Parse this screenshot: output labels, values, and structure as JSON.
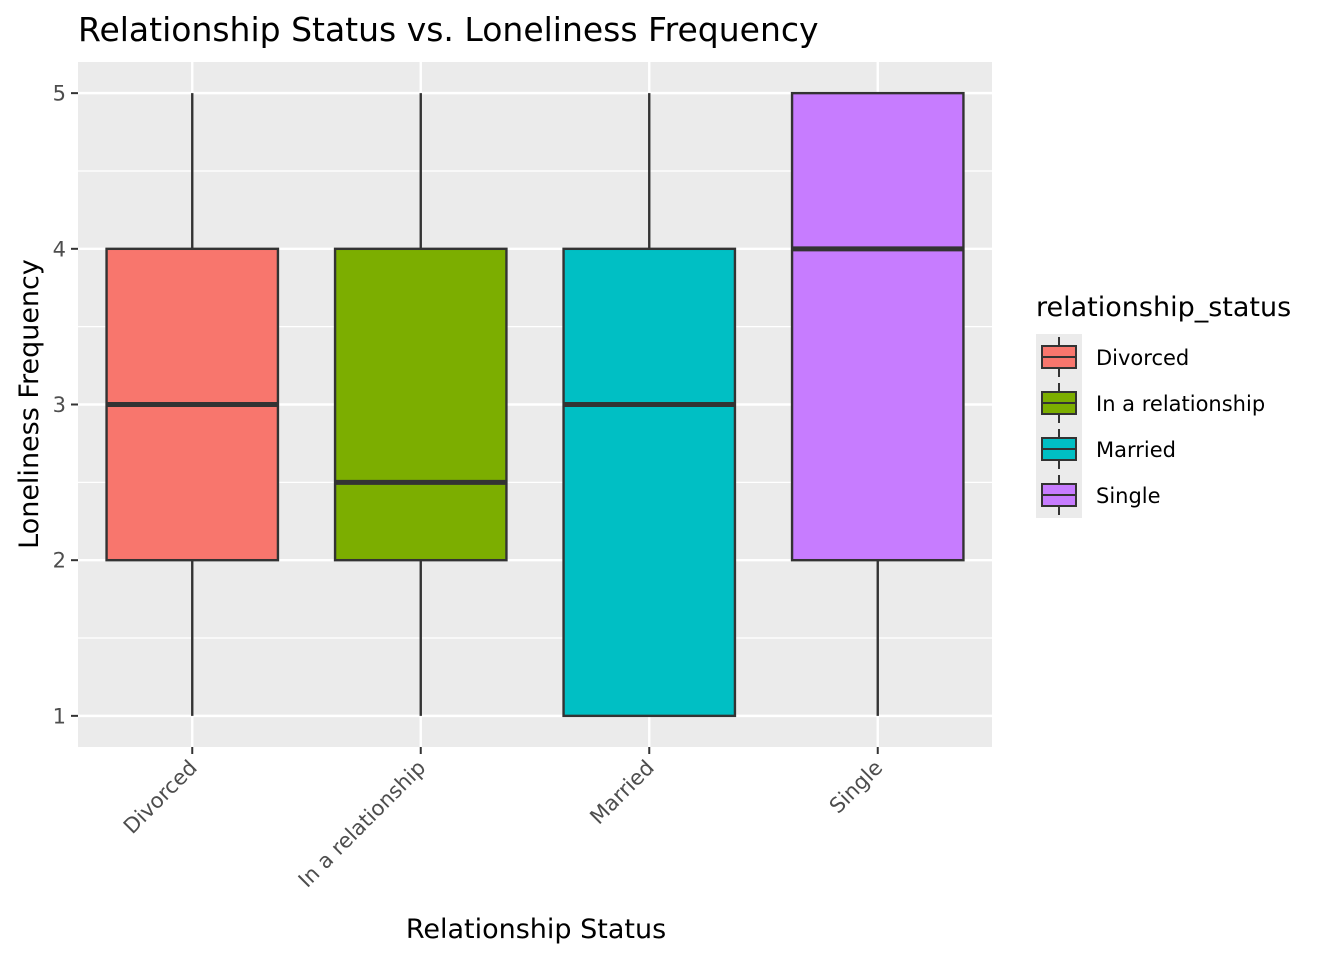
{
  "chart_data": {
    "type": "boxplot",
    "title": "Relationship Status vs. Loneliness Frequency",
    "xlabel": "Relationship Status",
    "ylabel": "Loneliness Frequency",
    "ylim": [
      0.8,
      5.2
    ],
    "yticks": [
      1,
      2,
      3,
      4,
      5
    ],
    "grid": true,
    "legend": {
      "title": "relationship_status",
      "position": "right"
    },
    "categories": [
      "Divorced",
      "In a relationship",
      "Married",
      "Single"
    ],
    "series": [
      {
        "name": "Divorced",
        "color": "#F8766D",
        "min": 1,
        "q1": 2,
        "median": 3,
        "q3": 4,
        "max": 5
      },
      {
        "name": "In a relationship",
        "color": "#7CAE00",
        "min": 1,
        "q1": 2,
        "median": 2.5,
        "q3": 4,
        "max": 5
      },
      {
        "name": "Married",
        "color": "#00BFC4",
        "min": 1,
        "q1": 1,
        "median": 3,
        "q3": 4,
        "max": 5
      },
      {
        "name": "Single",
        "color": "#C77CFF",
        "min": 1,
        "q1": 2,
        "median": 4,
        "q3": 5,
        "max": 5
      }
    ]
  }
}
